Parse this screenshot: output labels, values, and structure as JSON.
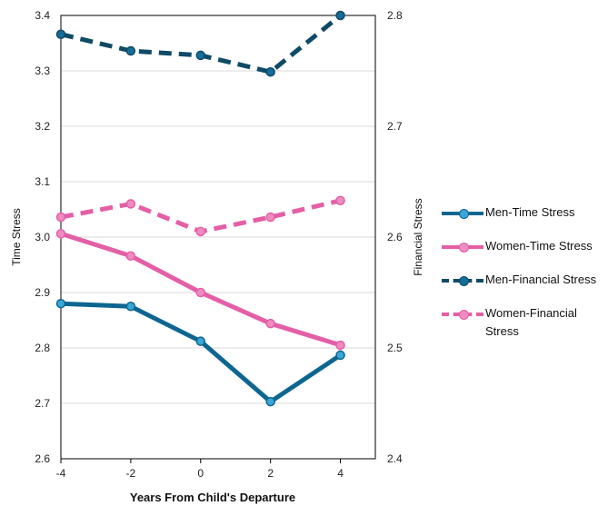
{
  "chart_data": {
    "type": "line",
    "xlabel": "Years From Child's Departure",
    "ylabel_left": "Time Stress",
    "ylabel_right": "Financial Stress",
    "x": [
      -4,
      -2,
      0,
      2,
      4
    ],
    "x_ticks": [
      "-4",
      "-2",
      "0",
      "2",
      "4"
    ],
    "xlim": [
      -4,
      5
    ],
    "ylim_left": [
      2.6,
      3.4
    ],
    "ylim_right": [
      2.4,
      2.8
    ],
    "y_ticks_left": [
      "2.6",
      "2.7",
      "2.8",
      "2.9",
      "3.0",
      "3.1",
      "3.2",
      "3.3",
      "3.4"
    ],
    "y_ticks_right": [
      "2.4",
      "2.5",
      "2.6",
      "2.7",
      "2.8"
    ],
    "grid": true,
    "legend_position": "right",
    "series": [
      {
        "name": "Men-Time Stress",
        "axis": "left",
        "style": "solid",
        "color": "#0d6690",
        "values": [
          2.88,
          2.875,
          2.812,
          2.703,
          2.787
        ]
      },
      {
        "name": "Women-Time Stress",
        "axis": "left",
        "style": "solid",
        "color": "#e45fa6",
        "values": [
          3.006,
          2.966,
          2.9,
          2.844,
          2.805
        ]
      },
      {
        "name": "Men-Financial Stress",
        "axis": "right",
        "style": "dashed",
        "color": "#0f4a66",
        "values": [
          2.783,
          2.768,
          2.764,
          2.749,
          2.8
        ]
      },
      {
        "name": "Women-Financial Stress",
        "axis": "right",
        "style": "dashed",
        "color": "#e45fa6",
        "values": [
          2.618,
          2.63,
          2.605,
          2.618,
          2.633
        ]
      }
    ]
  }
}
